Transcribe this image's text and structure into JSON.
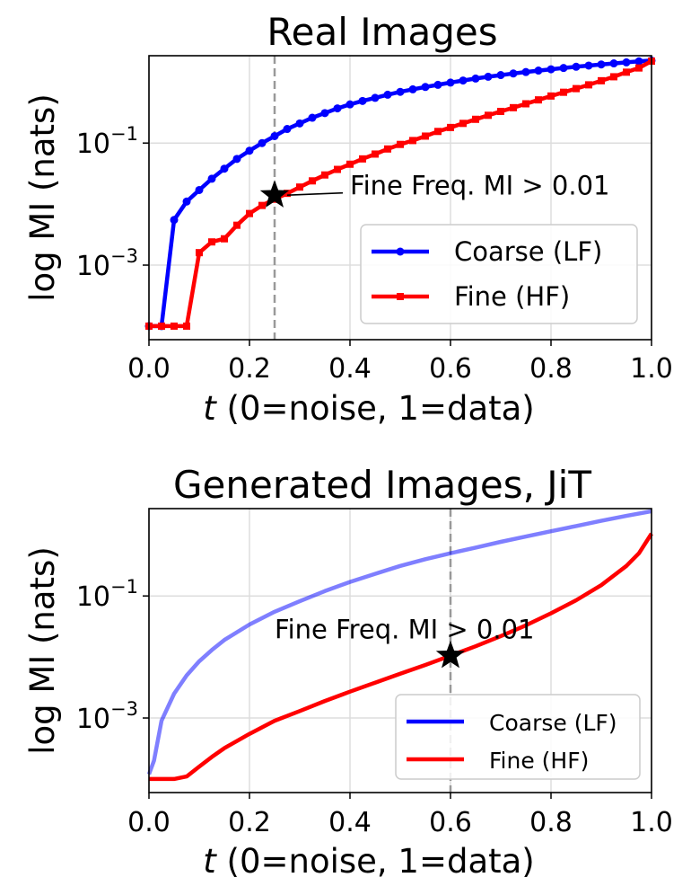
{
  "chart_data": [
    {
      "type": "line",
      "title": "Real Images",
      "xlabel_italic": "t",
      "xlabel": " (0=noise, 1=data)",
      "ylabel": "log MI (nats)",
      "xlim": [
        0,
        1
      ],
      "ylim": [
        6e-05,
        2.7
      ],
      "yscale": "log",
      "grid": true,
      "legend_position": "lower-right",
      "xticks": [
        0,
        0.2,
        0.4,
        0.6,
        0.8,
        1.0
      ],
      "xtick_labels": [
        "0.0",
        "0.2",
        "0.4",
        "0.6",
        "0.8",
        "1.0"
      ],
      "yticks": [
        0.001,
        0.1
      ],
      "ytick_labels": [
        {
          "base": "10",
          "exp": "−3"
        },
        {
          "base": "10",
          "exp": "−1"
        }
      ],
      "vline_x": 0.25,
      "annotation": {
        "text": "Fine Freq. MI > 0.01",
        "x": 0.25,
        "y": 0.014,
        "text_x": 0.4,
        "text_y": 0.02
      },
      "series": [
        {
          "name": "Coarse (LF)",
          "color": "#0000ff",
          "marker": "circle",
          "alpha": 1.0,
          "x": [
            0,
            0.025,
            0.05,
            0.075,
            0.1,
            0.125,
            0.15,
            0.175,
            0.2,
            0.225,
            0.25,
            0.275,
            0.3,
            0.325,
            0.35,
            0.375,
            0.4,
            0.425,
            0.45,
            0.475,
            0.5,
            0.525,
            0.55,
            0.575,
            0.6,
            0.625,
            0.65,
            0.675,
            0.7,
            0.725,
            0.75,
            0.775,
            0.8,
            0.825,
            0.85,
            0.875,
            0.9,
            0.925,
            0.95,
            0.975,
            1.0
          ],
          "y": [
            0.0001,
            0.0001,
            0.0055,
            0.011,
            0.017,
            0.026,
            0.038,
            0.055,
            0.075,
            0.1,
            0.13,
            0.17,
            0.21,
            0.26,
            0.31,
            0.37,
            0.43,
            0.49,
            0.55,
            0.62,
            0.69,
            0.76,
            0.83,
            0.9,
            0.98,
            1.06,
            1.14,
            1.22,
            1.3,
            1.38,
            1.46,
            1.54,
            1.62,
            1.7,
            1.78,
            1.86,
            1.94,
            2.02,
            2.1,
            2.18,
            2.25
          ]
        },
        {
          "name": "Fine (HF)",
          "color": "#ff0000",
          "marker": "square",
          "alpha": 1.0,
          "x": [
            0,
            0.025,
            0.05,
            0.075,
            0.1,
            0.125,
            0.15,
            0.175,
            0.2,
            0.225,
            0.25,
            0.275,
            0.3,
            0.325,
            0.35,
            0.375,
            0.4,
            0.425,
            0.45,
            0.475,
            0.5,
            0.525,
            0.55,
            0.575,
            0.6,
            0.625,
            0.65,
            0.675,
            0.7,
            0.725,
            0.75,
            0.775,
            0.8,
            0.825,
            0.85,
            0.875,
            0.9,
            0.925,
            0.95,
            0.975,
            1.0
          ],
          "y": [
            0.0001,
            0.0001,
            0.0001,
            0.0001,
            0.0016,
            0.0024,
            0.0027,
            0.0045,
            0.007,
            0.0095,
            0.012,
            0.015,
            0.019,
            0.024,
            0.03,
            0.037,
            0.045,
            0.055,
            0.066,
            0.08,
            0.095,
            0.11,
            0.13,
            0.155,
            0.18,
            0.21,
            0.245,
            0.285,
            0.33,
            0.38,
            0.44,
            0.51,
            0.59,
            0.68,
            0.78,
            0.9,
            1.05,
            1.22,
            1.45,
            1.7,
            2.2
          ]
        }
      ]
    },
    {
      "type": "line",
      "title": "Generated Images, JiT",
      "xlabel_italic": "t",
      "xlabel": " (0=noise, 1=data)",
      "ylabel": "log MI (nats)",
      "xlim": [
        0,
        1
      ],
      "ylim": [
        6e-05,
        2.7
      ],
      "yscale": "log",
      "grid": true,
      "legend_position": "lower-right",
      "xticks": [
        0,
        0.2,
        0.4,
        0.6,
        0.8,
        1.0
      ],
      "xtick_labels": [
        "0.0",
        "0.2",
        "0.4",
        "0.6",
        "0.8",
        "1.0"
      ],
      "yticks": [
        0.001,
        0.1
      ],
      "ytick_labels": [
        {
          "base": "10",
          "exp": "−3"
        },
        {
          "base": "10",
          "exp": "−1"
        }
      ],
      "vline_x": 0.6,
      "annotation": {
        "text": "Fine Freq. MI > 0.01",
        "x": 0.6,
        "y": 0.0105,
        "text_x": 0.25,
        "text_y": 0.028
      },
      "series": [
        {
          "name": "Coarse (LF)",
          "color": "#0000ff",
          "marker": "none",
          "alpha": 0.5,
          "x": [
            0,
            0.01,
            0.025,
            0.05,
            0.075,
            0.1,
            0.125,
            0.15,
            0.2,
            0.25,
            0.3,
            0.35,
            0.4,
            0.45,
            0.5,
            0.55,
            0.6,
            0.65,
            0.7,
            0.75,
            0.8,
            0.85,
            0.9,
            0.95,
            1.0
          ],
          "y": [
            0.00012,
            0.0002,
            0.0009,
            0.0025,
            0.005,
            0.0085,
            0.013,
            0.019,
            0.034,
            0.055,
            0.082,
            0.12,
            0.17,
            0.23,
            0.31,
            0.4,
            0.5,
            0.62,
            0.77,
            0.94,
            1.15,
            1.4,
            1.7,
            2.05,
            2.45
          ]
        },
        {
          "name": "Fine (HF)",
          "color": "#ff0000",
          "marker": "none",
          "alpha": 1.0,
          "x": [
            0,
            0.025,
            0.05,
            0.075,
            0.1,
            0.125,
            0.15,
            0.2,
            0.25,
            0.3,
            0.35,
            0.4,
            0.45,
            0.5,
            0.55,
            0.6,
            0.65,
            0.7,
            0.75,
            0.8,
            0.85,
            0.9,
            0.95,
            0.975,
            1.0
          ],
          "y": [
            0.0001,
            0.0001,
            0.0001,
            0.00011,
            0.00016,
            0.00023,
            0.00032,
            0.00055,
            0.0009,
            0.0013,
            0.0019,
            0.0027,
            0.0038,
            0.0053,
            0.0074,
            0.0105,
            0.015,
            0.022,
            0.033,
            0.052,
            0.085,
            0.15,
            0.31,
            0.5,
            1.05
          ]
        }
      ]
    }
  ]
}
